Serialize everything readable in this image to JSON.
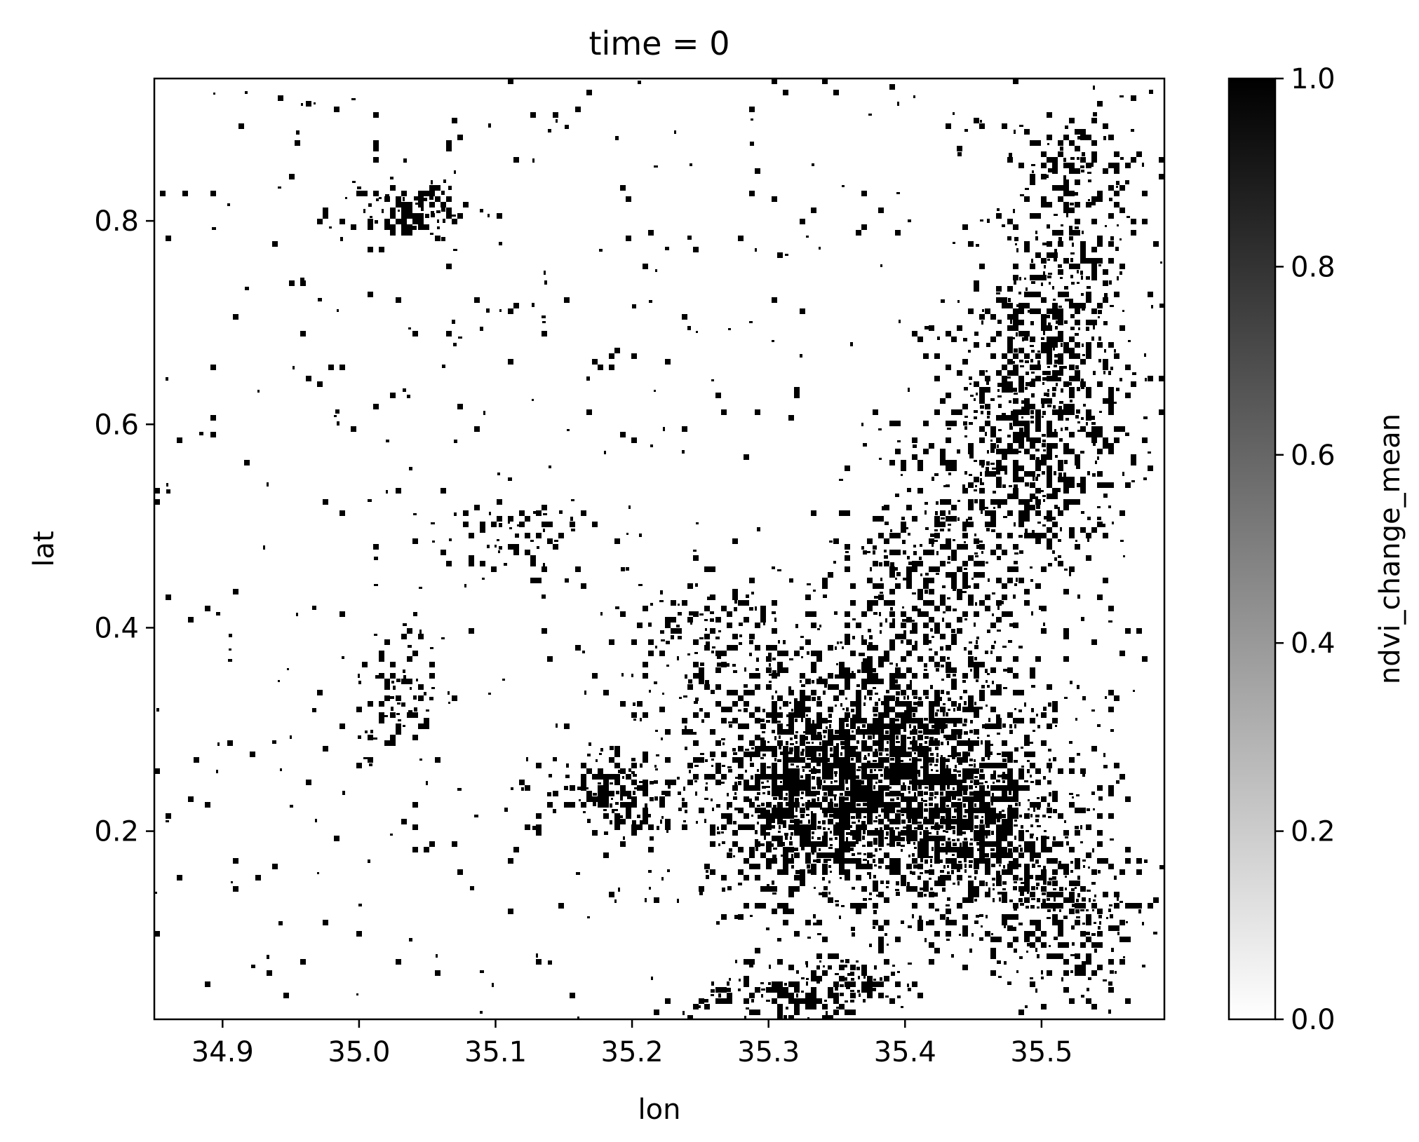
{
  "chart_data": {
    "type": "heatmap",
    "title": "time = 0",
    "xlabel": "lon",
    "ylabel": "lat",
    "xlim": [
      34.85,
      35.59
    ],
    "ylim": [
      0.015,
      0.94
    ],
    "xticks": [
      34.9,
      35.0,
      35.1,
      35.2,
      35.3,
      35.4,
      35.5
    ],
    "xtick_labels": [
      "34.9",
      "35.0",
      "35.1",
      "35.2",
      "35.3",
      "35.4",
      "35.5"
    ],
    "yticks": [
      0.2,
      0.4,
      0.6,
      0.8
    ],
    "ytick_labels": [
      "0.2",
      "0.4",
      "0.6",
      "0.8"
    ],
    "colormap": "Greys",
    "value_range": [
      0.0,
      1.0
    ],
    "colorbar": {
      "label": "ndvi_change_mean",
      "ticks": [
        0.0,
        0.2,
        0.4,
        0.6,
        0.8,
        1.0
      ],
      "tick_labels": [
        "0.0",
        "0.2",
        "0.4",
        "0.6",
        "0.8",
        "1.0"
      ],
      "color_low": "#ffffff",
      "color_high": "#000000"
    },
    "values_present": [
      0,
      1
    ],
    "dense_regions": [
      {
        "lon": [
          35.27,
          35.5
        ],
        "lat": [
          0.1,
          0.38
        ],
        "description": "dense change cluster"
      },
      {
        "lon": [
          35.15,
          35.25
        ],
        "lat": [
          0.2,
          0.27
        ],
        "description": "dense change cluster"
      },
      {
        "lon": [
          35.43,
          35.58
        ],
        "lat": [
          0.45,
          0.9
        ],
        "description": "dense change band"
      },
      {
        "lon": [
          35.0,
          35.07
        ],
        "lat": [
          0.78,
          0.84
        ],
        "description": "patch"
      },
      {
        "lon": [
          34.99,
          35.06
        ],
        "lat": [
          0.27,
          0.38
        ],
        "description": "patches"
      },
      {
        "lon": [
          35.25,
          35.4
        ],
        "lat": [
          0.02,
          0.07
        ],
        "description": "patches"
      }
    ]
  }
}
